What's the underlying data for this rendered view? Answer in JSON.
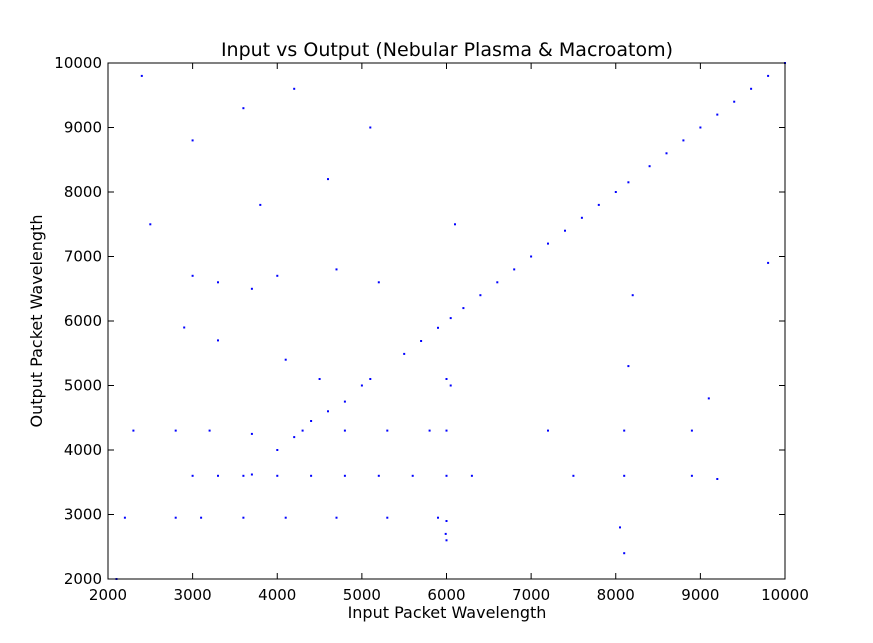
{
  "chart_data": {
    "type": "scatter",
    "title": "Input vs Output (Nebular Plasma & Macroatom)",
    "xlabel": "Input Packet Wavelength",
    "ylabel": "Output Packet Wavelength",
    "xlim": [
      2000,
      10000
    ],
    "ylim": [
      2000,
      10000
    ],
    "xticks": [
      2000,
      3000,
      4000,
      5000,
      6000,
      7000,
      8000,
      9000,
      10000
    ],
    "yticks": [
      2000,
      3000,
      4000,
      5000,
      6000,
      7000,
      8000,
      9000,
      10000
    ],
    "xtick_labels": [
      "2000",
      "3000",
      "4000",
      "5000",
      "6000",
      "7000",
      "8000",
      "9000",
      "10000"
    ],
    "ytick_labels": [
      "2000",
      "3000",
      "4000",
      "5000",
      "6000",
      "7000",
      "8000",
      "9000",
      "10000"
    ],
    "grid": false,
    "marker_color": "#0000ff",
    "series": [
      {
        "points": [
          [
            5500,
            5490
          ],
          [
            5700,
            5690
          ],
          [
            5900,
            5895
          ],
          [
            6050,
            6045
          ],
          [
            6200,
            6200
          ],
          [
            6400,
            6400
          ],
          [
            6600,
            6600
          ],
          [
            6800,
            6800
          ],
          [
            7000,
            7000
          ],
          [
            7200,
            7200
          ],
          [
            7400,
            7400
          ],
          [
            7600,
            7600
          ],
          [
            7800,
            7800
          ],
          [
            8000,
            8000
          ],
          [
            8150,
            8150
          ],
          [
            8400,
            8400
          ],
          [
            8600,
            8600
          ],
          [
            8800,
            8800
          ],
          [
            9000,
            9000
          ],
          [
            9200,
            9200
          ],
          [
            9400,
            9400
          ],
          [
            9600,
            9600
          ],
          [
            9800,
            9800
          ],
          [
            10000,
            10000
          ],
          [
            4000,
            4000
          ],
          [
            4200,
            4200
          ],
          [
            4400,
            4450
          ],
          [
            4600,
            4600
          ],
          [
            4800,
            4750
          ],
          [
            5000,
            5000
          ],
          [
            5100,
            5100
          ],
          [
            3000,
            3600
          ],
          [
            3300,
            3600
          ],
          [
            3600,
            3600
          ],
          [
            3700,
            3620
          ],
          [
            4000,
            3600
          ],
          [
            4400,
            3600
          ],
          [
            4800,
            3600
          ],
          [
            5200,
            3600
          ],
          [
            5600,
            3600
          ],
          [
            6000,
            3600
          ],
          [
            6300,
            3600
          ],
          [
            7500,
            3600
          ],
          [
            8100,
            3600
          ],
          [
            8900,
            3600
          ],
          [
            9200,
            3550
          ],
          [
            2300,
            4300
          ],
          [
            2800,
            4300
          ],
          [
            3200,
            4300
          ],
          [
            3700,
            4250
          ],
          [
            4300,
            4300
          ],
          [
            4800,
            4300
          ],
          [
            5300,
            4300
          ],
          [
            5800,
            4300
          ],
          [
            6000,
            4300
          ],
          [
            7200,
            4300
          ],
          [
            8100,
            4300
          ],
          [
            8900,
            4300
          ],
          [
            2200,
            2950
          ],
          [
            2800,
            2950
          ],
          [
            3100,
            2950
          ],
          [
            3600,
            2950
          ],
          [
            4100,
            2950
          ],
          [
            4700,
            2950
          ],
          [
            5300,
            2950
          ],
          [
            5900,
            2950
          ],
          [
            6000,
            2900
          ],
          [
            3000,
            6700
          ],
          [
            3300,
            6600
          ],
          [
            3700,
            6500
          ],
          [
            4000,
            6700
          ],
          [
            4700,
            6800
          ],
          [
            5200,
            6600
          ],
          [
            2500,
            7500
          ],
          [
            3800,
            7800
          ],
          [
            4600,
            8200
          ],
          [
            3000,
            8800
          ],
          [
            3600,
            9300
          ],
          [
            4200,
            9600
          ],
          [
            2400,
            9800
          ],
          [
            5100,
            9000
          ],
          [
            6100,
            7500
          ],
          [
            6000,
            5100
          ],
          [
            6050,
            5000
          ],
          [
            5990,
            2700
          ],
          [
            6000,
            2600
          ],
          [
            8050,
            2800
          ],
          [
            8100,
            2400
          ],
          [
            8200,
            6400
          ],
          [
            8150,
            5300
          ],
          [
            9100,
            4800
          ],
          [
            9800,
            6900
          ],
          [
            2100,
            2000
          ],
          [
            2900,
            5900
          ],
          [
            3300,
            5700
          ],
          [
            4100,
            5400
          ],
          [
            4500,
            5100
          ]
        ]
      }
    ]
  }
}
